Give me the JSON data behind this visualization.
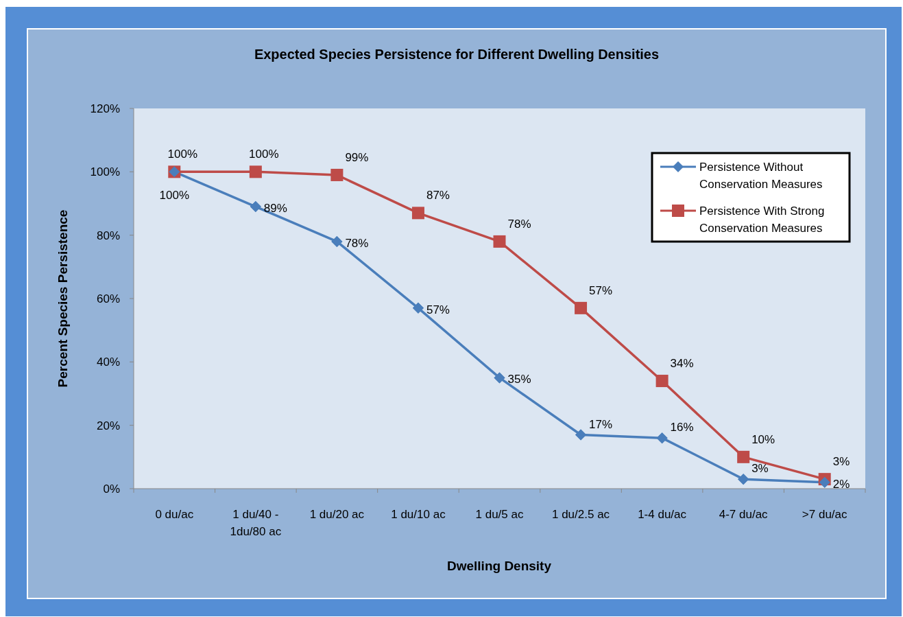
{
  "chart_data": {
    "type": "line",
    "title": "Expected Species Persistence for Different Dwelling Densities",
    "xlabel": "Dwelling Density",
    "ylabel": "Percent Species Persistence",
    "categories": [
      "0 du/ac",
      "1 du/40 -\n1du/80 ac",
      "1 du/20 ac",
      "1 du/10 ac",
      "1 du/5 ac",
      "1 du/2.5 ac",
      "1-4 du/ac",
      "4-7 du/ac",
      ">7 du/ac"
    ],
    "series": [
      {
        "name": "Persistence Without\nConservation Measures",
        "color": "#4a7ebb",
        "marker": "diamond",
        "values": [
          100,
          89,
          78,
          57,
          35,
          17,
          16,
          3,
          2
        ],
        "value_labels": [
          "100%",
          "89%",
          "78%",
          "57%",
          "35%",
          "17%",
          "16%",
          "3%",
          "2%"
        ]
      },
      {
        "name": "Persistence With Strong\nConservation Measures",
        "color": "#be4b48",
        "marker": "square",
        "values": [
          100,
          100,
          99,
          87,
          78,
          57,
          34,
          10,
          3
        ],
        "value_labels": [
          "100%",
          "100%",
          "99%",
          "87%",
          "78%",
          "57%",
          "34%",
          "10%",
          "3%"
        ]
      }
    ],
    "ylim": [
      0,
      120
    ],
    "yticks": [
      {
        "value": 0,
        "label": "0%"
      },
      {
        "value": 20,
        "label": "20%"
      },
      {
        "value": 40,
        "label": "40%"
      },
      {
        "value": 60,
        "label": "60%"
      },
      {
        "value": 80,
        "label": "80%"
      },
      {
        "value": 100,
        "label": "100%"
      },
      {
        "value": 120,
        "label": "120%"
      }
    ],
    "grid": false,
    "legend": "top right",
    "line_style": "solid"
  }
}
